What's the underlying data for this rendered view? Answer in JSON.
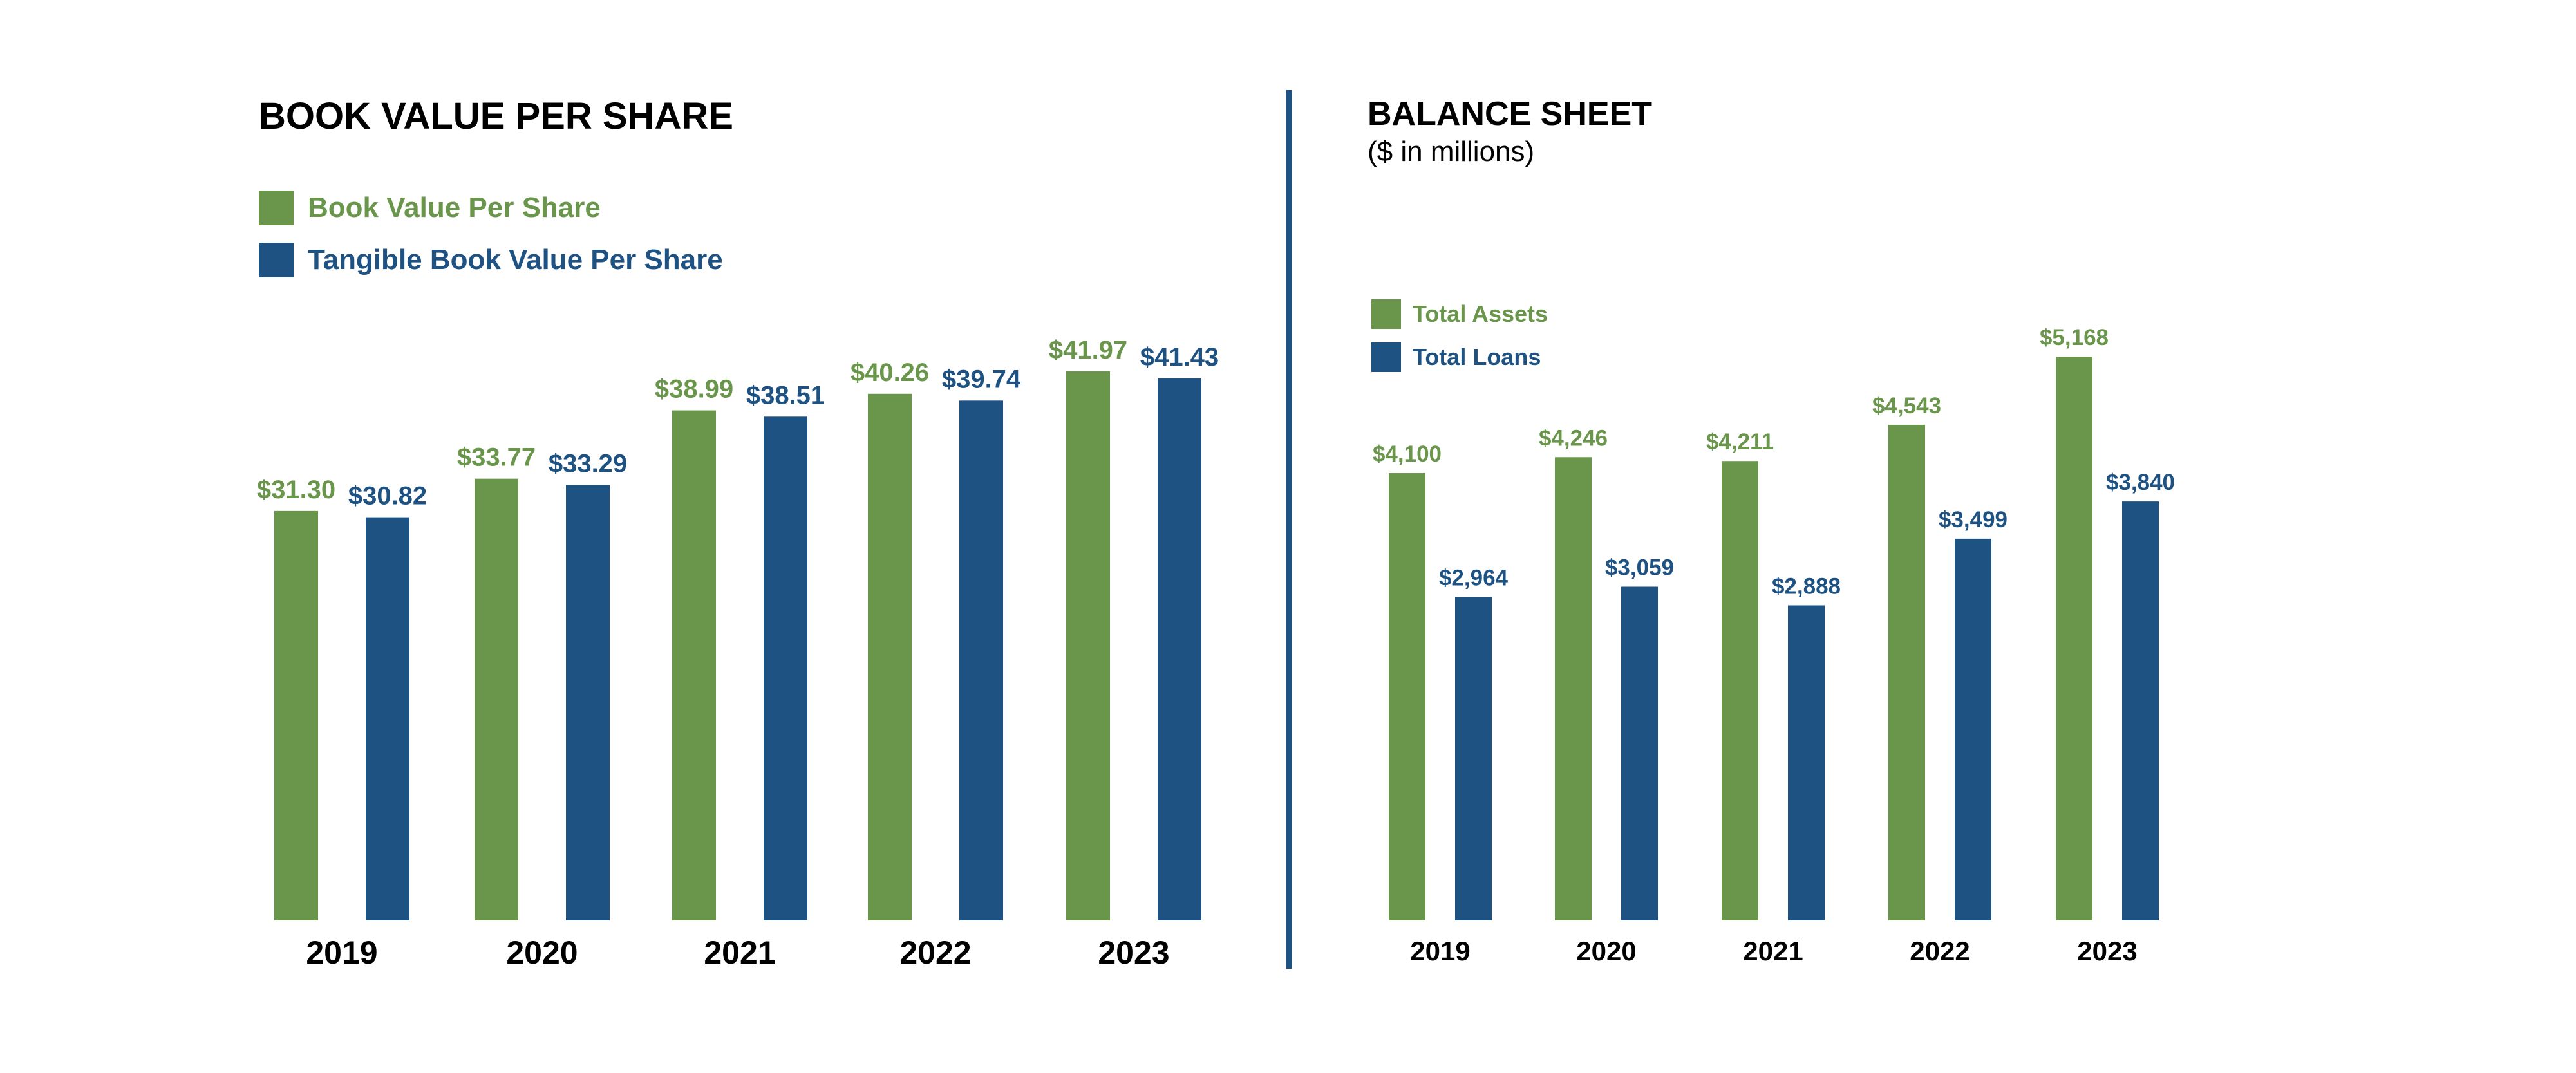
{
  "colors": {
    "green": "#6A964C",
    "blue": "#1E5283",
    "divider": "#1E5283"
  },
  "chart_data": [
    {
      "type": "bar",
      "title": "BOOK VALUE PER SHARE",
      "subtitle": "",
      "categories": [
        "2019",
        "2020",
        "2021",
        "2022",
        "2023"
      ],
      "series": [
        {
          "name": "Book Value Per Share",
          "color": "#6A964C",
          "values": [
            31.3,
            33.77,
            38.99,
            40.26,
            41.97
          ],
          "labels": [
            "$31.30",
            "$33.77",
            "$38.99",
            "$40.26",
            "$41.97"
          ]
        },
        {
          "name": "Tangible Book Value Per Share",
          "color": "#1E5283",
          "values": [
            30.82,
            33.29,
            38.51,
            39.74,
            41.43
          ],
          "labels": [
            "$30.82",
            "$33.29",
            "$38.51",
            "$39.74",
            "$41.43"
          ]
        }
      ],
      "xlabel": "",
      "ylabel": "",
      "ylim": [
        0,
        41.97
      ],
      "grid": false,
      "legend": "top-left"
    },
    {
      "type": "bar",
      "title": "BALANCE SHEET",
      "subtitle": "($ in millions)",
      "categories": [
        "2019",
        "2020",
        "2021",
        "2022",
        "2023"
      ],
      "series": [
        {
          "name": "Total Assets",
          "color": "#6A964C",
          "values": [
            4100,
            4246,
            4211,
            4543,
            5168
          ],
          "labels": [
            "$4,100",
            "$4,246",
            "$4,211",
            "$4,543",
            "$5,168"
          ]
        },
        {
          "name": "Total Loans",
          "color": "#1E5283",
          "values": [
            2964,
            3059,
            2888,
            3499,
            3840
          ],
          "labels": [
            "$2,964",
            "$3,059",
            "$2,888",
            "$3,499",
            "$3,840"
          ]
        }
      ],
      "xlabel": "",
      "ylabel": "",
      "ylim": [
        0,
        5168
      ],
      "grid": false,
      "legend": "top-left"
    }
  ]
}
